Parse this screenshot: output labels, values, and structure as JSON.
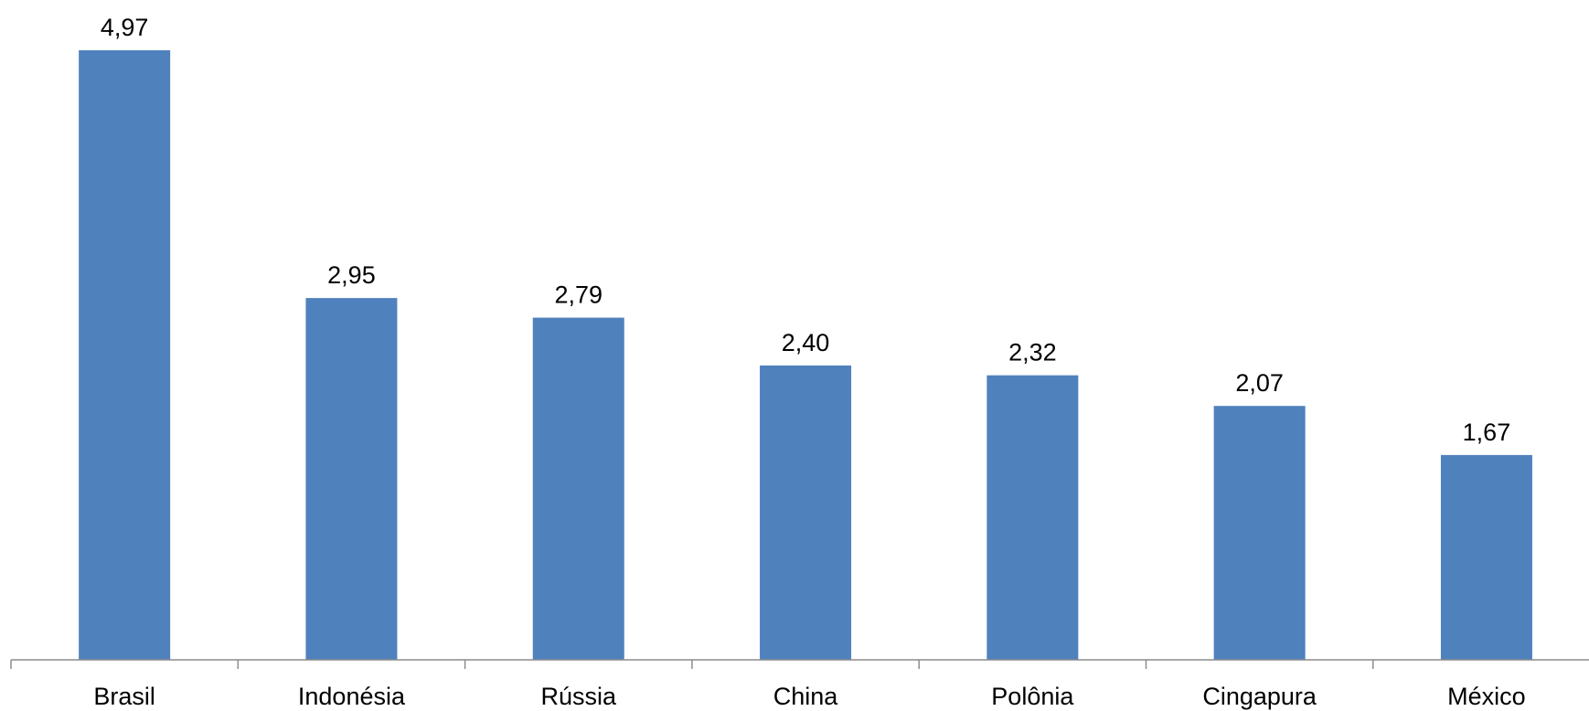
{
  "chart_data": {
    "type": "bar",
    "title": "",
    "xlabel": "",
    "ylabel": "",
    "categories": [
      "Brasil",
      "Indonésia",
      "Rússia",
      "China",
      "Polônia",
      "Cingapura",
      "México"
    ],
    "values": [
      4.97,
      2.95,
      2.79,
      2.4,
      2.32,
      2.07,
      1.67
    ],
    "value_labels": [
      "4,97",
      "2,95",
      "2,79",
      "2,40",
      "2,32",
      "2,07",
      "1,67"
    ],
    "ylim": [
      0,
      5
    ],
    "grid": false,
    "legend": "none",
    "colors": {
      "bar": "#4f81bd",
      "axis": "#8c8c8c"
    }
  }
}
